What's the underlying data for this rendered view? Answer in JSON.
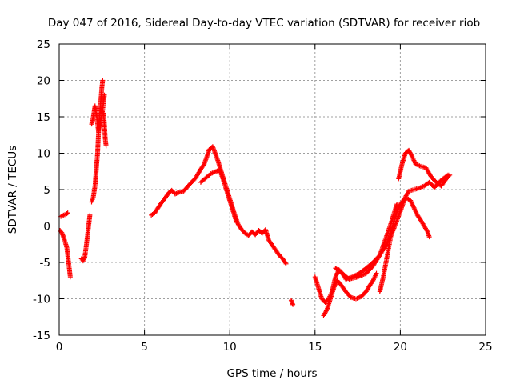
{
  "chart_data": {
    "type": "scatter",
    "title": "Day 047 of 2016, Sidereal Day-to-day VTEC variation (SDTVAR) for receiver riob",
    "xlabel": "GPS time / hours",
    "ylabel": "SDTVAR / TECUs",
    "xlim": [
      0,
      25
    ],
    "ylim": [
      -15,
      25
    ],
    "xticks": [
      0,
      5,
      10,
      15,
      20,
      25
    ],
    "yticks": [
      -15,
      -10,
      -5,
      0,
      5,
      10,
      15,
      20,
      25
    ],
    "grid": true,
    "marker": "+",
    "series": [
      {
        "name": "SDTVAR",
        "color": "#ff0000",
        "segments": [
          [
            [
              0.05,
              -0.6
            ],
            [
              0.15,
              -0.9
            ],
            [
              0.25,
              -1.5
            ],
            [
              0.35,
              -2.2
            ],
            [
              0.45,
              -3.0
            ],
            [
              0.5,
              -4.0
            ],
            [
              0.55,
              -5.0
            ],
            [
              0.6,
              -6.0
            ],
            [
              0.65,
              -7.0
            ]
          ],
          [
            [
              0.1,
              1.3
            ],
            [
              0.25,
              1.5
            ],
            [
              0.4,
              1.6
            ],
            [
              0.5,
              1.8
            ]
          ],
          [
            [
              1.3,
              -4.5
            ],
            [
              1.4,
              -4.8
            ],
            [
              1.5,
              -4.3
            ],
            [
              1.6,
              -2.5
            ],
            [
              1.7,
              -0.5
            ],
            [
              1.75,
              0.5
            ],
            [
              1.8,
              1.5
            ]
          ],
          [
            [
              1.9,
              3.3
            ],
            [
              2.0,
              4.0
            ],
            [
              2.1,
              5.5
            ],
            [
              2.15,
              7.0
            ],
            [
              2.2,
              8.5
            ],
            [
              2.25,
              10.0
            ],
            [
              2.3,
              12.5
            ],
            [
              2.35,
              14.5
            ],
            [
              2.4,
              16.0
            ],
            [
              2.45,
              17.5
            ],
            [
              2.5,
              19.0
            ],
            [
              2.55,
              20.0
            ]
          ],
          [
            [
              1.9,
              14.0
            ],
            [
              2.0,
              15.0
            ],
            [
              2.1,
              16.5
            ],
            [
              2.2,
              15.0
            ],
            [
              2.3,
              13.0
            ],
            [
              2.4,
              14.5
            ],
            [
              2.5,
              15.0
            ],
            [
              2.6,
              17.0
            ],
            [
              2.65,
              18.0
            ]
          ],
          [
            [
              2.6,
              15.5
            ],
            [
              2.65,
              14.0
            ],
            [
              2.7,
              12.0
            ],
            [
              2.75,
              11.0
            ]
          ],
          [
            [
              5.4,
              1.5
            ],
            [
              5.6,
              1.8
            ],
            [
              5.8,
              2.5
            ],
            [
              6.0,
              3.2
            ],
            [
              6.2,
              3.8
            ],
            [
              6.4,
              4.5
            ],
            [
              6.6,
              4.9
            ],
            [
              6.8,
              4.4
            ],
            [
              7.0,
              4.6
            ],
            [
              7.3,
              4.8
            ],
            [
              7.6,
              5.6
            ],
            [
              8.0,
              6.6
            ],
            [
              8.3,
              7.8
            ],
            [
              8.5,
              8.5
            ],
            [
              8.7,
              9.8
            ],
            [
              8.8,
              10.5
            ],
            [
              9.0,
              10.9
            ],
            [
              9.1,
              10.3
            ],
            [
              9.3,
              9.0
            ],
            [
              9.5,
              7.5
            ],
            [
              9.7,
              6.0
            ],
            [
              9.9,
              4.5
            ],
            [
              10.1,
              3.0
            ],
            [
              10.3,
              1.5
            ],
            [
              10.5,
              0.2
            ],
            [
              10.7,
              -0.5
            ],
            [
              10.9,
              -1.0
            ],
            [
              11.1,
              -1.3
            ],
            [
              11.3,
              -0.8
            ],
            [
              11.5,
              -1.2
            ],
            [
              11.7,
              -0.6
            ],
            [
              11.9,
              -1.0
            ],
            [
              12.1,
              -0.5
            ],
            [
              12.3,
              -2.0
            ],
            [
              12.6,
              -3.0
            ],
            [
              12.9,
              -4.0
            ],
            [
              13.1,
              -4.5
            ],
            [
              13.3,
              -5.2
            ]
          ],
          [
            [
              8.3,
              6.0
            ],
            [
              8.6,
              6.6
            ],
            [
              8.9,
              7.2
            ],
            [
              9.2,
              7.5
            ],
            [
              9.4,
              7.7
            ],
            [
              9.6,
              6.5
            ],
            [
              9.8,
              5.0
            ],
            [
              10.0,
              3.5
            ],
            [
              10.2,
              2.0
            ],
            [
              10.4,
              0.5
            ]
          ],
          [
            [
              13.6,
              -10.2
            ],
            [
              13.7,
              -10.8
            ]
          ],
          [
            [
              15.0,
              -7.0
            ],
            [
              15.2,
              -8.5
            ],
            [
              15.4,
              -10.0
            ],
            [
              15.6,
              -10.5
            ],
            [
              15.8,
              -10.0
            ],
            [
              16.0,
              -9.0
            ],
            [
              16.2,
              -7.0
            ],
            [
              16.4,
              -6.0
            ],
            [
              16.6,
              -6.5
            ],
            [
              16.8,
              -7.3
            ],
            [
              17.2,
              -7.0
            ],
            [
              17.6,
              -6.5
            ],
            [
              18.0,
              -5.8
            ],
            [
              18.4,
              -5.0
            ],
            [
              18.8,
              -4.0
            ],
            [
              19.2,
              -2.5
            ],
            [
              19.6,
              -0.5
            ],
            [
              20.0,
              2.0
            ],
            [
              20.3,
              4.0
            ],
            [
              20.5,
              4.8
            ],
            [
              20.8,
              5.0
            ],
            [
              21.1,
              5.2
            ],
            [
              21.4,
              5.5
            ],
            [
              21.7,
              6.0
            ],
            [
              22.0,
              5.3
            ],
            [
              22.4,
              6.3
            ],
            [
              22.8,
              7.0
            ]
          ],
          [
            [
              15.5,
              -12.3
            ],
            [
              15.7,
              -11.5
            ],
            [
              15.9,
              -10.0
            ],
            [
              16.1,
              -8.5
            ],
            [
              16.3,
              -7.5
            ],
            [
              16.5,
              -8.0
            ],
            [
              16.8,
              -9.0
            ],
            [
              17.1,
              -9.8
            ],
            [
              17.4,
              -10.0
            ],
            [
              17.7,
              -9.7
            ],
            [
              18.0,
              -9.0
            ],
            [
              18.2,
              -8.2
            ],
            [
              18.4,
              -7.5
            ],
            [
              18.6,
              -6.5
            ]
          ],
          [
            [
              18.8,
              -9.0
            ],
            [
              19.0,
              -7.0
            ],
            [
              19.2,
              -4.5
            ],
            [
              19.4,
              -2.0
            ],
            [
              19.6,
              0.5
            ],
            [
              19.8,
              2.0
            ],
            [
              20.0,
              3.0
            ],
            [
              20.2,
              3.6
            ],
            [
              20.4,
              3.8
            ],
            [
              20.6,
              3.5
            ],
            [
              20.8,
              2.5
            ],
            [
              21.0,
              1.5
            ],
            [
              21.2,
              0.8
            ],
            [
              21.4,
              0.0
            ],
            [
              21.6,
              -0.8
            ],
            [
              21.7,
              -1.5
            ]
          ],
          [
            [
              16.2,
              -5.8
            ],
            [
              16.6,
              -6.5
            ],
            [
              17.0,
              -7.3
            ],
            [
              17.5,
              -7.0
            ],
            [
              18.0,
              -6.5
            ],
            [
              18.4,
              -5.5
            ],
            [
              18.8,
              -4.0
            ],
            [
              19.1,
              -2.0
            ],
            [
              19.4,
              0.0
            ],
            [
              19.6,
              1.5
            ],
            [
              19.8,
              3.0
            ]
          ],
          [
            [
              19.9,
              6.5
            ],
            [
              20.1,
              8.5
            ],
            [
              20.3,
              10.0
            ],
            [
              20.5,
              10.4
            ],
            [
              20.7,
              9.5
            ],
            [
              20.9,
              8.5
            ],
            [
              21.2,
              8.2
            ],
            [
              21.5,
              8.0
            ],
            [
              21.8,
              6.8
            ],
            [
              22.1,
              6.0
            ],
            [
              22.4,
              5.5
            ],
            [
              22.7,
              6.5
            ],
            [
              22.9,
              7.0
            ]
          ]
        ]
      }
    ]
  }
}
